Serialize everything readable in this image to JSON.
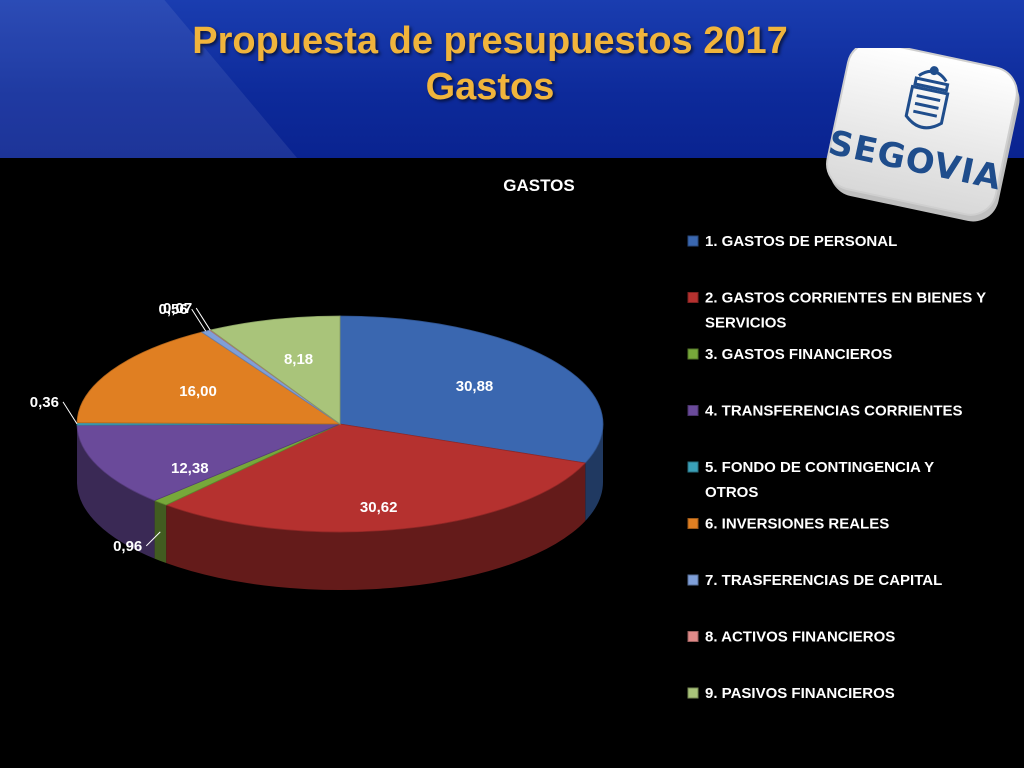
{
  "header": {
    "title_line1": "Propuesta de presupuestos 2017",
    "title_line2": "Gastos"
  },
  "logo": {
    "text": "SEGOVIA",
    "icon": "segovia-coat-of-arms-icon"
  },
  "colors": {
    "header_bg": "#0d2a9a",
    "title_text": "#f0b43c",
    "chart_bg": "#000000"
  },
  "chart_data": {
    "type": "pie",
    "title": "GASTOS",
    "legend_position": "right",
    "categories": [
      "1. GASTOS DE PERSONAL",
      "2. GASTOS CORRIENTES EN BIENES Y SERVICIOS",
      "3. GASTOS FINANCIEROS",
      "4. TRANSFERENCIAS CORRIENTES",
      "5. FONDO DE CONTINGENCIA Y OTROS",
      "6. INVERSIONES REALES",
      "7. TRASFERENCIAS DE CAPITAL",
      "8. ACTIVOS FINANCIEROS",
      "9. PASIVOS FINANCIEROS"
    ],
    "legend_lines": [
      [
        "1. GASTOS DE PERSONAL"
      ],
      [
        "2. GASTOS CORRIENTES EN BIENES Y",
        "SERVICIOS"
      ],
      [
        "3. GASTOS FINANCIEROS"
      ],
      [
        "4. TRANSFERENCIAS CORRIENTES"
      ],
      [
        "5. FONDO DE CONTINGENCIA Y",
        "OTROS"
      ],
      [
        "6. INVERSIONES REALES"
      ],
      [
        "7. TRASFERENCIAS DE CAPITAL"
      ],
      [
        "8. ACTIVOS FINANCIEROS"
      ],
      [
        "9. PASIVOS FINANCIEROS"
      ]
    ],
    "values": [
      30.88,
      30.62,
      0.96,
      12.38,
      0.36,
      16.0,
      0.56,
      0.07,
      8.18
    ],
    "labels": [
      "30,88",
      "30,62",
      "0,96",
      "12,38",
      "0,36",
      "16,00",
      "0,56",
      "0,07",
      "8,18"
    ],
    "colors": [
      "#3a67b0",
      "#b5312f",
      "#77a83a",
      "#6a4a9a",
      "#3aa0b8",
      "#e07f22",
      "#7f9fd8",
      "#e08a88",
      "#a9c47a"
    ]
  }
}
